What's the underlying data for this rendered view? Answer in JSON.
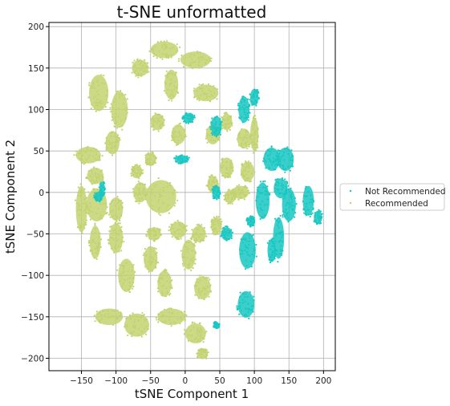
{
  "chart_data": {
    "type": "scatter",
    "title": "t-SNE unformatted",
    "xlabel": "tSNE Component 1",
    "ylabel": "tSNE Component 2",
    "xlim": [
      -197,
      217
    ],
    "ylim": [
      -215,
      205
    ],
    "xticks": [
      -150,
      -100,
      -50,
      0,
      50,
      100,
      150,
      200
    ],
    "yticks": [
      -200,
      -150,
      -100,
      -50,
      0,
      50,
      100,
      150,
      200
    ],
    "grid": true,
    "legend_position": "outside-right",
    "series": [
      {
        "name": "Recommended",
        "color": "#c3d270",
        "clusters": [
          {
            "cx": -125,
            "cy": 120,
            "rx": 14,
            "ry": 22
          },
          {
            "cx": -95,
            "cy": 100,
            "rx": 12,
            "ry": 22
          },
          {
            "cx": -65,
            "cy": 150,
            "rx": 12,
            "ry": 10
          },
          {
            "cx": -30,
            "cy": 172,
            "rx": 20,
            "ry": 10
          },
          {
            "cx": 15,
            "cy": 160,
            "rx": 22,
            "ry": 10
          },
          {
            "cx": -20,
            "cy": 130,
            "rx": 10,
            "ry": 18
          },
          {
            "cx": 30,
            "cy": 120,
            "rx": 18,
            "ry": 10
          },
          {
            "cx": -140,
            "cy": 45,
            "rx": 18,
            "ry": 10
          },
          {
            "cx": -130,
            "cy": 20,
            "rx": 12,
            "ry": 10
          },
          {
            "cx": -105,
            "cy": 60,
            "rx": 10,
            "ry": 14
          },
          {
            "cx": -40,
            "cy": 85,
            "rx": 10,
            "ry": 10
          },
          {
            "cx": -10,
            "cy": 70,
            "rx": 10,
            "ry": 12
          },
          {
            "cx": -50,
            "cy": 40,
            "rx": 8,
            "ry": 8
          },
          {
            "cx": -70,
            "cy": 25,
            "rx": 8,
            "ry": 8
          },
          {
            "cx": 40,
            "cy": 70,
            "rx": 10,
            "ry": 12
          },
          {
            "cx": 85,
            "cy": 65,
            "rx": 10,
            "ry": 12
          },
          {
            "cx": 60,
            "cy": 85,
            "rx": 8,
            "ry": 10
          },
          {
            "cx": 60,
            "cy": 30,
            "rx": 10,
            "ry": 12
          },
          {
            "cx": 90,
            "cy": 25,
            "rx": 10,
            "ry": 12
          },
          {
            "cx": 80,
            "cy": 0,
            "rx": 12,
            "ry": 8
          },
          {
            "cx": -35,
            "cy": -5,
            "rx": 22,
            "ry": 20
          },
          {
            "cx": -65,
            "cy": 0,
            "rx": 10,
            "ry": 12
          },
          {
            "cx": -128,
            "cy": -15,
            "rx": 15,
            "ry": 20
          },
          {
            "cx": -150,
            "cy": -20,
            "rx": 8,
            "ry": 28
          },
          {
            "cx": -100,
            "cy": -20,
            "rx": 10,
            "ry": 14
          },
          {
            "cx": -45,
            "cy": -50,
            "rx": 10,
            "ry": 8
          },
          {
            "cx": -10,
            "cy": -45,
            "rx": 12,
            "ry": 10
          },
          {
            "cx": 5,
            "cy": -75,
            "rx": 10,
            "ry": 18
          },
          {
            "cx": -50,
            "cy": -80,
            "rx": 10,
            "ry": 15
          },
          {
            "cx": -100,
            "cy": -55,
            "rx": 10,
            "ry": 18
          },
          {
            "cx": -130,
            "cy": -60,
            "rx": 8,
            "ry": 20
          },
          {
            "cx": -85,
            "cy": -100,
            "rx": 12,
            "ry": 20
          },
          {
            "cx": -30,
            "cy": -110,
            "rx": 10,
            "ry": 16
          },
          {
            "cx": 25,
            "cy": -115,
            "rx": 12,
            "ry": 14
          },
          {
            "cx": 20,
            "cy": -50,
            "rx": 10,
            "ry": 10
          },
          {
            "cx": -110,
            "cy": -150,
            "rx": 20,
            "ry": 10
          },
          {
            "cx": -70,
            "cy": -160,
            "rx": 18,
            "ry": 14
          },
          {
            "cx": -20,
            "cy": -150,
            "rx": 20,
            "ry": 10
          },
          {
            "cx": 15,
            "cy": -170,
            "rx": 15,
            "ry": 12
          },
          {
            "cx": 25,
            "cy": -195,
            "rx": 8,
            "ry": 6
          },
          {
            "cx": 45,
            "cy": -40,
            "rx": 8,
            "ry": 10
          },
          {
            "cx": 40,
            "cy": 10,
            "rx": 8,
            "ry": 10
          },
          {
            "cx": 65,
            "cy": -5,
            "rx": 8,
            "ry": 8
          },
          {
            "cx": 100,
            "cy": 70,
            "rx": 6,
            "ry": 20
          }
        ]
      },
      {
        "name": "Not Recommended",
        "color": "#18c7c1",
        "clusters": [
          {
            "cx": 125,
            "cy": 40,
            "rx": 12,
            "ry": 14
          },
          {
            "cx": 145,
            "cy": 40,
            "rx": 12,
            "ry": 14
          },
          {
            "cx": 138,
            "cy": 5,
            "rx": 10,
            "ry": 12
          },
          {
            "cx": 112,
            "cy": -10,
            "rx": 10,
            "ry": 22
          },
          {
            "cx": 150,
            "cy": -15,
            "rx": 10,
            "ry": 20
          },
          {
            "cx": 178,
            "cy": -10,
            "rx": 8,
            "ry": 18
          },
          {
            "cx": 192,
            "cy": -30,
            "rx": 6,
            "ry": 8
          },
          {
            "cx": 135,
            "cy": -55,
            "rx": 8,
            "ry": 25
          },
          {
            "cx": 125,
            "cy": -70,
            "rx": 6,
            "ry": 14
          },
          {
            "cx": 90,
            "cy": -70,
            "rx": 12,
            "ry": 22
          },
          {
            "cx": 95,
            "cy": -35,
            "rx": 6,
            "ry": 6
          },
          {
            "cx": 60,
            "cy": -50,
            "rx": 8,
            "ry": 8
          },
          {
            "cx": 45,
            "cy": 0,
            "rx": 6,
            "ry": 8
          },
          {
            "cx": 45,
            "cy": 80,
            "rx": 8,
            "ry": 12
          },
          {
            "cx": 85,
            "cy": 100,
            "rx": 8,
            "ry": 16
          },
          {
            "cx": 100,
            "cy": 115,
            "rx": 6,
            "ry": 10
          },
          {
            "cx": 88,
            "cy": -135,
            "rx": 12,
            "ry": 16
          },
          {
            "cx": 45,
            "cy": -160,
            "rx": 4,
            "ry": 4
          },
          {
            "cx": -125,
            "cy": -5,
            "rx": 6,
            "ry": 6
          },
          {
            "cx": -5,
            "cy": 40,
            "rx": 10,
            "ry": 5
          },
          {
            "cx": 5,
            "cy": 90,
            "rx": 8,
            "ry": 6
          },
          {
            "cx": -120,
            "cy": 5,
            "rx": 4,
            "ry": 8
          }
        ]
      }
    ]
  }
}
